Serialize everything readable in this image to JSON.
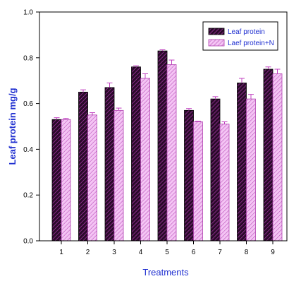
{
  "chart_data": {
    "type": "bar",
    "title": "",
    "xlabel": "Treatments",
    "ylabel": "Leaf protein mg/g",
    "categories": [
      "1",
      "2",
      "3",
      "4",
      "5",
      "6",
      "7",
      "8",
      "9"
    ],
    "ylim": [
      0.0,
      1.0
    ],
    "yticks": [
      "0.0",
      "0.2",
      "0.4",
      "0.6",
      "0.8",
      "1.0"
    ],
    "grid": false,
    "legend_position": "top-right",
    "series": [
      {
        "name": "Leaf protein",
        "values": [
          0.53,
          0.65,
          0.67,
          0.76,
          0.83,
          0.57,
          0.62,
          0.69,
          0.75
        ],
        "errors": [
          0.008,
          0.01,
          0.02,
          0.005,
          0.005,
          0.008,
          0.01,
          0.02,
          0.01
        ],
        "color": "#2a0a2a",
        "hatch_color": "#c040c0"
      },
      {
        "name": "Laef protein+N",
        "values": [
          0.53,
          0.55,
          0.57,
          0.71,
          0.77,
          0.52,
          0.51,
          0.62,
          0.73
        ],
        "errors": [
          0.005,
          0.01,
          0.01,
          0.02,
          0.02,
          0.003,
          0.01,
          0.02,
          0.02
        ],
        "color": "#f0b0f0",
        "hatch_color": "#b040b0"
      }
    ]
  }
}
